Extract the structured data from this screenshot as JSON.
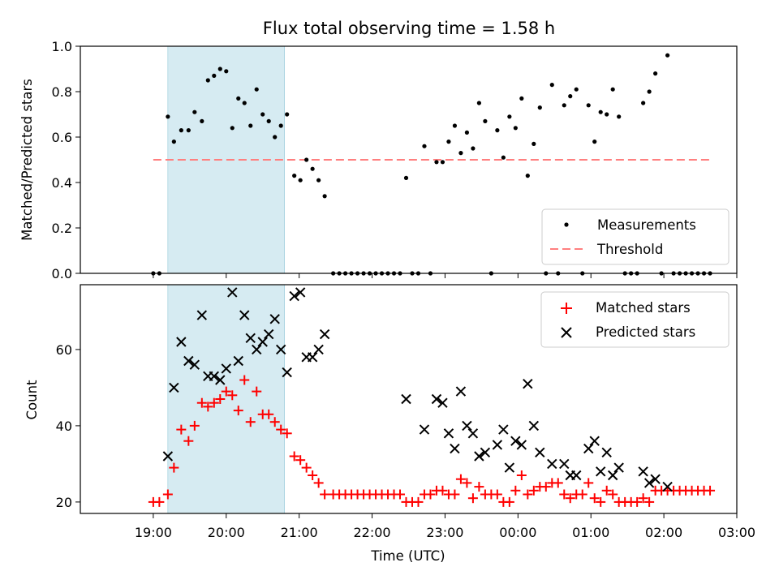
{
  "chart_data": [
    {
      "type": "scatter",
      "title": "Flux total observing time = 1.58 h",
      "ylabel": "Matched/Predicted stars",
      "xlabel": "",
      "ylim": [
        0,
        1.0
      ],
      "yticks": [
        "0.0",
        "0.2",
        "0.4",
        "0.6",
        "0.8",
        "1.0"
      ],
      "highlight_span": {
        "start": "19:12",
        "end": "20:48",
        "color": "#add8e6"
      },
      "threshold": {
        "name": "Threshold",
        "value": 0.5,
        "from": "19:00",
        "to": "02:40",
        "color": "#ff7f7f"
      },
      "legend_position": "lower right",
      "series": [
        {
          "name": "Measurements",
          "color": "#000000",
          "points": [
            [
              "19:00",
              0.0
            ],
            [
              "19:05",
              0.0
            ],
            [
              "19:12",
              0.69
            ],
            [
              "19:17",
              0.58
            ],
            [
              "19:23",
              0.63
            ],
            [
              "19:29",
              0.63
            ],
            [
              "19:34",
              0.71
            ],
            [
              "19:40",
              0.67
            ],
            [
              "19:45",
              0.85
            ],
            [
              "19:50",
              0.87
            ],
            [
              "19:55",
              0.9
            ],
            [
              "20:00",
              0.89
            ],
            [
              "20:05",
              0.64
            ],
            [
              "20:10",
              0.77
            ],
            [
              "20:15",
              0.75
            ],
            [
              "20:20",
              0.65
            ],
            [
              "20:25",
              0.81
            ],
            [
              "20:30",
              0.7
            ],
            [
              "20:35",
              0.67
            ],
            [
              "20:40",
              0.6
            ],
            [
              "20:45",
              0.65
            ],
            [
              "20:50",
              0.7
            ],
            [
              "20:56",
              0.43
            ],
            [
              "21:01",
              0.41
            ],
            [
              "21:06",
              0.5
            ],
            [
              "21:11",
              0.46
            ],
            [
              "21:16",
              0.41
            ],
            [
              "21:21",
              0.34
            ],
            [
              "21:28",
              0.0
            ],
            [
              "21:33",
              0.0
            ],
            [
              "21:38",
              0.0
            ],
            [
              "21:43",
              0.0
            ],
            [
              "21:48",
              0.0
            ],
            [
              "21:53",
              0.0
            ],
            [
              "21:58",
              0.0
            ],
            [
              "22:03",
              0.0
            ],
            [
              "22:08",
              0.0
            ],
            [
              "22:13",
              0.0
            ],
            [
              "22:18",
              0.0
            ],
            [
              "22:23",
              0.0
            ],
            [
              "22:28",
              0.42
            ],
            [
              "22:33",
              0.0
            ],
            [
              "22:38",
              0.0
            ],
            [
              "22:43",
              0.56
            ],
            [
              "22:48",
              0.0
            ],
            [
              "22:53",
              0.49
            ],
            [
              "22:58",
              0.49
            ],
            [
              "23:03",
              0.58
            ],
            [
              "23:08",
              0.65
            ],
            [
              "23:13",
              0.53
            ],
            [
              "23:18",
              0.62
            ],
            [
              "23:23",
              0.55
            ],
            [
              "23:28",
              0.75
            ],
            [
              "23:33",
              0.67
            ],
            [
              "23:38",
              0.0
            ],
            [
              "23:43",
              0.63
            ],
            [
              "23:48",
              0.51
            ],
            [
              "23:53",
              0.69
            ],
            [
              "23:58",
              0.64
            ],
            [
              "00:03",
              0.77
            ],
            [
              "00:08",
              0.43
            ],
            [
              "00:13",
              0.57
            ],
            [
              "00:18",
              0.73
            ],
            [
              "00:23",
              0.0
            ],
            [
              "00:28",
              0.83
            ],
            [
              "00:33",
              0.0
            ],
            [
              "00:38",
              0.74
            ],
            [
              "00:43",
              0.78
            ],
            [
              "00:48",
              0.81
            ],
            [
              "00:53",
              0.0
            ],
            [
              "00:58",
              0.74
            ],
            [
              "01:03",
              0.58
            ],
            [
              "01:08",
              0.71
            ],
            [
              "01:13",
              0.7
            ],
            [
              "01:18",
              0.81
            ],
            [
              "01:23",
              0.69
            ],
            [
              "01:28",
              0.0
            ],
            [
              "01:33",
              0.0
            ],
            [
              "01:38",
              0.0
            ],
            [
              "01:43",
              0.75
            ],
            [
              "01:48",
              0.8
            ],
            [
              "01:53",
              0.88
            ],
            [
              "01:58",
              0.0
            ],
            [
              "02:03",
              0.96
            ],
            [
              "02:08",
              0.0
            ],
            [
              "02:13",
              0.0
            ],
            [
              "02:18",
              0.0
            ],
            [
              "02:23",
              0.0
            ],
            [
              "02:28",
              0.0
            ],
            [
              "02:33",
              0.0
            ],
            [
              "02:38",
              0.0
            ]
          ]
        }
      ]
    },
    {
      "type": "scatter",
      "ylabel": "Count",
      "xlabel": "Time (UTC)",
      "ylim": [
        17,
        77
      ],
      "yticks": [
        "20",
        "40",
        "60"
      ],
      "xticks": [
        "19:00",
        "20:00",
        "21:00",
        "22:00",
        "23:00",
        "00:00",
        "01:00",
        "02:00",
        "03:00"
      ],
      "highlight_span": {
        "start": "19:12",
        "end": "20:48",
        "color": "#add8e6"
      },
      "legend_position": "upper right",
      "series": [
        {
          "name": "Matched stars",
          "color": "#ff0000",
          "marker": "plus",
          "points": [
            [
              "19:00",
              20
            ],
            [
              "19:05",
              20
            ],
            [
              "19:12",
              22
            ],
            [
              "19:17",
              29
            ],
            [
              "19:23",
              39
            ],
            [
              "19:29",
              36
            ],
            [
              "19:34",
              40
            ],
            [
              "19:40",
              46
            ],
            [
              "19:45",
              45
            ],
            [
              "19:50",
              46
            ],
            [
              "19:55",
              47
            ],
            [
              "20:00",
              49
            ],
            [
              "20:05",
              48
            ],
            [
              "20:10",
              44
            ],
            [
              "20:15",
              52
            ],
            [
              "20:20",
              41
            ],
            [
              "20:25",
              49
            ],
            [
              "20:30",
              43
            ],
            [
              "20:35",
              43
            ],
            [
              "20:40",
              41
            ],
            [
              "20:45",
              39
            ],
            [
              "20:50",
              38
            ],
            [
              "20:56",
              32
            ],
            [
              "21:01",
              31
            ],
            [
              "21:06",
              29
            ],
            [
              "21:11",
              27
            ],
            [
              "21:16",
              25
            ],
            [
              "21:21",
              22
            ],
            [
              "21:28",
              22
            ],
            [
              "21:33",
              22
            ],
            [
              "21:38",
              22
            ],
            [
              "21:43",
              22
            ],
            [
              "21:48",
              22
            ],
            [
              "21:53",
              22
            ],
            [
              "21:58",
              22
            ],
            [
              "22:03",
              22
            ],
            [
              "22:08",
              22
            ],
            [
              "22:13",
              22
            ],
            [
              "22:18",
              22
            ],
            [
              "22:23",
              22
            ],
            [
              "22:28",
              20
            ],
            [
              "22:33",
              20
            ],
            [
              "22:38",
              20
            ],
            [
              "22:43",
              22
            ],
            [
              "22:48",
              22
            ],
            [
              "22:53",
              23
            ],
            [
              "22:58",
              23
            ],
            [
              "23:03",
              22
            ],
            [
              "23:08",
              22
            ],
            [
              "23:13",
              26
            ],
            [
              "23:18",
              25
            ],
            [
              "23:23",
              21
            ],
            [
              "23:28",
              24
            ],
            [
              "23:33",
              22
            ],
            [
              "23:38",
              22
            ],
            [
              "23:43",
              22
            ],
            [
              "23:48",
              20
            ],
            [
              "23:53",
              20
            ],
            [
              "23:58",
              23
            ],
            [
              "00:03",
              27
            ],
            [
              "00:08",
              22
            ],
            [
              "00:13",
              23
            ],
            [
              "00:18",
              24
            ],
            [
              "00:23",
              24
            ],
            [
              "00:28",
              25
            ],
            [
              "00:33",
              25
            ],
            [
              "00:38",
              22
            ],
            [
              "00:43",
              21
            ],
            [
              "00:48",
              22
            ],
            [
              "00:53",
              22
            ],
            [
              "00:58",
              25
            ],
            [
              "01:03",
              21
            ],
            [
              "01:08",
              20
            ],
            [
              "01:13",
              23
            ],
            [
              "01:18",
              22
            ],
            [
              "01:23",
              20
            ],
            [
              "01:28",
              20
            ],
            [
              "01:33",
              20
            ],
            [
              "01:38",
              20
            ],
            [
              "01:43",
              21
            ],
            [
              "01:48",
              20
            ],
            [
              "01:53",
              23
            ],
            [
              "01:58",
              23
            ],
            [
              "02:03",
              23
            ],
            [
              "02:08",
              23
            ],
            [
              "02:13",
              23
            ],
            [
              "02:18",
              23
            ],
            [
              "02:23",
              23
            ],
            [
              "02:28",
              23
            ],
            [
              "02:33",
              23
            ],
            [
              "02:38",
              23
            ]
          ]
        },
        {
          "name": "Predicted stars",
          "color": "#000000",
          "marker": "x",
          "points": [
            [
              "19:12",
              32
            ],
            [
              "19:17",
              50
            ],
            [
              "19:23",
              62
            ],
            [
              "19:29",
              57
            ],
            [
              "19:34",
              56
            ],
            [
              "19:40",
              69
            ],
            [
              "19:45",
              53
            ],
            [
              "19:50",
              53
            ],
            [
              "19:55",
              52
            ],
            [
              "20:00",
              55
            ],
            [
              "20:05",
              75
            ],
            [
              "20:10",
              57
            ],
            [
              "20:15",
              69
            ],
            [
              "20:20",
              63
            ],
            [
              "20:25",
              60
            ],
            [
              "20:30",
              62
            ],
            [
              "20:35",
              64
            ],
            [
              "20:40",
              68
            ],
            [
              "20:45",
              60
            ],
            [
              "20:50",
              54
            ],
            [
              "20:56",
              74
            ],
            [
              "21:01",
              75
            ],
            [
              "21:06",
              58
            ],
            [
              "21:11",
              58
            ],
            [
              "21:16",
              60
            ],
            [
              "21:21",
              64
            ],
            [
              "22:28",
              47
            ],
            [
              "22:43",
              39
            ],
            [
              "22:53",
              47
            ],
            [
              "22:58",
              46
            ],
            [
              "23:03",
              38
            ],
            [
              "23:08",
              34
            ],
            [
              "23:13",
              49
            ],
            [
              "23:18",
              40
            ],
            [
              "23:23",
              38
            ],
            [
              "23:28",
              32
            ],
            [
              "23:33",
              33
            ],
            [
              "23:43",
              35
            ],
            [
              "23:48",
              39
            ],
            [
              "23:53",
              29
            ],
            [
              "23:58",
              36
            ],
            [
              "00:03",
              35
            ],
            [
              "00:08",
              51
            ],
            [
              "00:13",
              40
            ],
            [
              "00:18",
              33
            ],
            [
              "00:28",
              30
            ],
            [
              "00:38",
              30
            ],
            [
              "00:43",
              27
            ],
            [
              "00:48",
              27
            ],
            [
              "00:58",
              34
            ],
            [
              "01:03",
              36
            ],
            [
              "01:08",
              28
            ],
            [
              "01:13",
              33
            ],
            [
              "01:18",
              27
            ],
            [
              "01:23",
              29
            ],
            [
              "01:43",
              28
            ],
            [
              "01:48",
              25
            ],
            [
              "01:53",
              26
            ],
            [
              "02:03",
              24
            ]
          ]
        }
      ]
    }
  ]
}
